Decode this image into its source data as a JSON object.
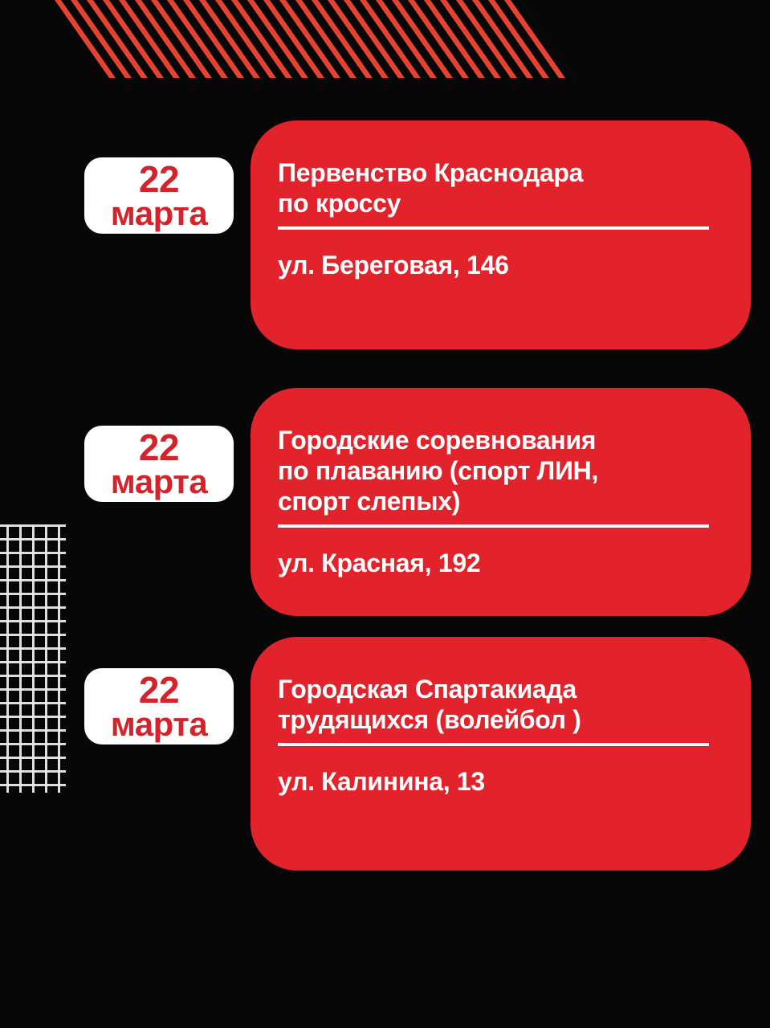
{
  "page": {
    "background": "#070707",
    "type": "sports-events-schedule-poster"
  },
  "decorations": {
    "top_stripes": "diagonal-red-stripes",
    "left_grid": "white-grid-pattern",
    "stripe_color": "#e5432f",
    "grid_color": "#eaeaea"
  },
  "colors": {
    "card_red": "#e2232b",
    "badge_bg": "#ffffff",
    "badge_text_red": "#d6232b",
    "card_text": "#ffffff",
    "divider": "#ffffff"
  },
  "events": [
    {
      "date_day": "22",
      "date_month": "марта",
      "title": "Первенство Краснодара\nпо кроссу",
      "address": "ул. Береговая, 146"
    },
    {
      "date_day": "22",
      "date_month": "марта",
      "title": "Городские соревнования\nпо плаванию (спорт ЛИН,\nспорт слепых)",
      "address": "ул. Красная, 192"
    },
    {
      "date_day": "22",
      "date_month": "марта",
      "title": "Городская Спартакиада\nтрудящихся (волейбол )",
      "address": "ул. Калинина, 13"
    }
  ]
}
